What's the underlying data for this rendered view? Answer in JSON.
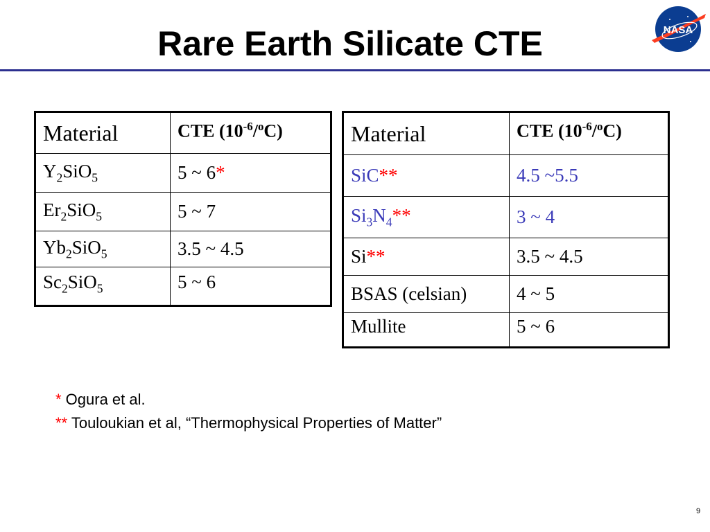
{
  "slide": {
    "title": "Rare Earth Silicate CTE",
    "page_number": "9",
    "logo_text": "NASA",
    "colors": {
      "title_rule": "#2b2f8f",
      "accent_blue": "#3a3ab8",
      "asterisk_red": "#ff0000"
    }
  },
  "left_table": {
    "header": {
      "material": "Material",
      "cte_prefix": "CTE (10",
      "cte_exp": "-6",
      "cte_slash": "/",
      "cte_deg": "o",
      "cte_suffix": "C)"
    },
    "rows": [
      {
        "el": "Y",
        "n1": "2",
        "mid": "SiO",
        "n2": "5",
        "cte": "5 ~ 6",
        "mark": "*"
      },
      {
        "el": "Er",
        "n1": "2",
        "mid": "SiO",
        "n2": "5",
        "cte": "5 ~ 7",
        "mark": ""
      },
      {
        "el": "Yb",
        "n1": "2",
        "mid": "SiO",
        "n2": "5",
        "cte": "3.5 ~ 4.5",
        "mark": ""
      },
      {
        "el": "Sc",
        "n1": "2",
        "mid": "SiO",
        "n2": "5",
        "cte": "5 ~ 6",
        "mark": ""
      }
    ]
  },
  "right_table": {
    "header": {
      "material": "Material",
      "cte_prefix": "CTE (10",
      "cte_exp": "-6",
      "cte_slash": "/",
      "cte_deg": "o",
      "cte_suffix": "C)"
    },
    "rows": [
      {
        "material": "SiC",
        "mark": "**",
        "cte": "4.5 ~5.5"
      },
      {
        "a": "Si",
        "an": "3",
        "b": "N",
        "bn": "4",
        "mark": "**",
        "cte": "3 ~ 4"
      },
      {
        "material": "Si",
        "mark": "**",
        "cte": "3.5 ~ 4.5"
      },
      {
        "material": "BSAS (celsian)",
        "mark": "",
        "cte": "4 ~ 5"
      },
      {
        "material": "Mullite",
        "mark": "",
        "cte": "5 ~ 6"
      }
    ]
  },
  "footnotes": [
    {
      "mark": "*",
      "text": " Ogura et al."
    },
    {
      "mark": "**",
      "text": " Touloukian et al, “Thermophysical Properties of Matter”"
    }
  ]
}
